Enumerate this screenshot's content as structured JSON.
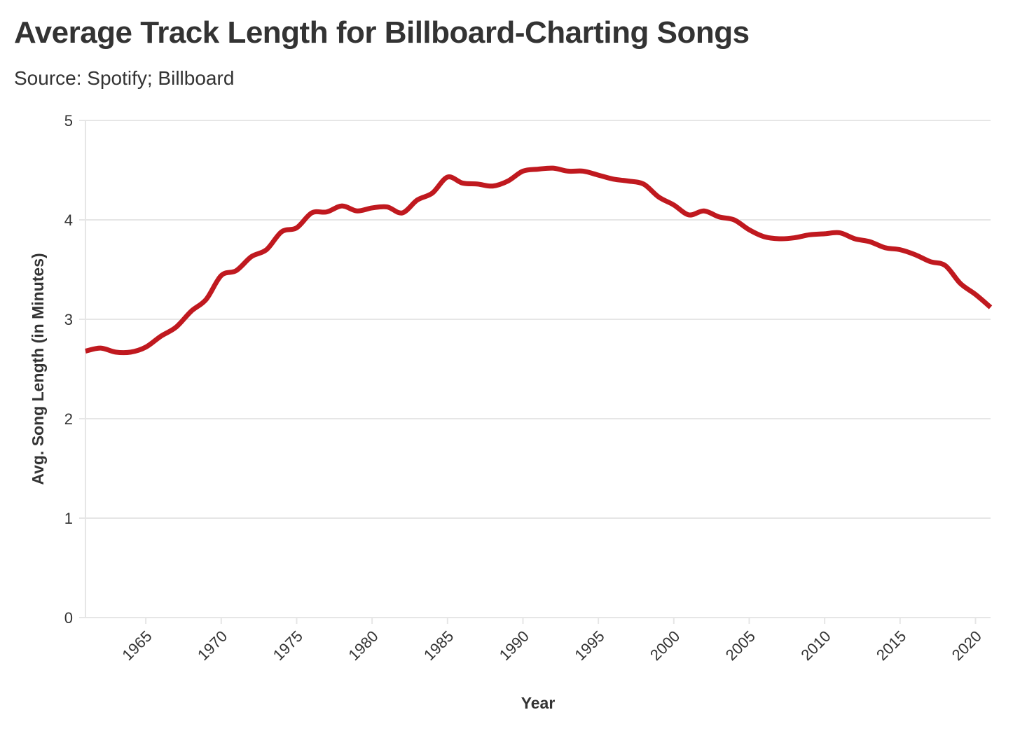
{
  "chart_data": {
    "type": "line",
    "title": "Average Track Length for Billboard-Charting Songs",
    "subtitle": "Source: Spotify; Billboard",
    "xlabel": "Year",
    "ylabel": "Avg. Song Length (in Minutes)",
    "xlim": [
      1961,
      2021
    ],
    "ylim": [
      0,
      5
    ],
    "x_ticks": [
      1965,
      1970,
      1975,
      1980,
      1985,
      1990,
      1995,
      2000,
      2005,
      2010,
      2015,
      2020
    ],
    "y_ticks": [
      0,
      1,
      2,
      3,
      4,
      5
    ],
    "grid": "horizontal",
    "legend": "none",
    "line_color": "#c0191f",
    "grid_color": "#e6e6e6",
    "series": [
      {
        "x": [
          1961,
          1962,
          1963,
          1964,
          1965,
          1966,
          1967,
          1968,
          1969,
          1970,
          1971,
          1972,
          1973,
          1974,
          1975,
          1976,
          1977,
          1978,
          1979,
          1980,
          1981,
          1982,
          1983,
          1984,
          1985,
          1986,
          1987,
          1988,
          1989,
          1990,
          1991,
          1992,
          1993,
          1994,
          1995,
          1996,
          1997,
          1998,
          1999,
          2000,
          2001,
          2002,
          2003,
          2004,
          2005,
          2006,
          2007,
          2008,
          2009,
          2010,
          2011,
          2012,
          2013,
          2014,
          2015,
          2016,
          2017,
          2018,
          2019,
          2020,
          2021
        ],
        "values": [
          2.68,
          2.71,
          2.67,
          2.67,
          2.72,
          2.83,
          2.92,
          3.08,
          3.2,
          3.44,
          3.49,
          3.63,
          3.7,
          3.88,
          3.92,
          4.07,
          4.08,
          4.14,
          4.09,
          4.12,
          4.13,
          4.07,
          4.2,
          4.27,
          4.43,
          4.37,
          4.36,
          4.34,
          4.39,
          4.49,
          4.51,
          4.52,
          4.49,
          4.49,
          4.45,
          4.41,
          4.39,
          4.36,
          4.23,
          4.15,
          4.05,
          4.09,
          4.03,
          4.0,
          3.9,
          3.83,
          3.81,
          3.82,
          3.85,
          3.86,
          3.87,
          3.81,
          3.78,
          3.72,
          3.7,
          3.65,
          3.58,
          3.54,
          3.36,
          3.25,
          3.12
        ]
      }
    ]
  }
}
